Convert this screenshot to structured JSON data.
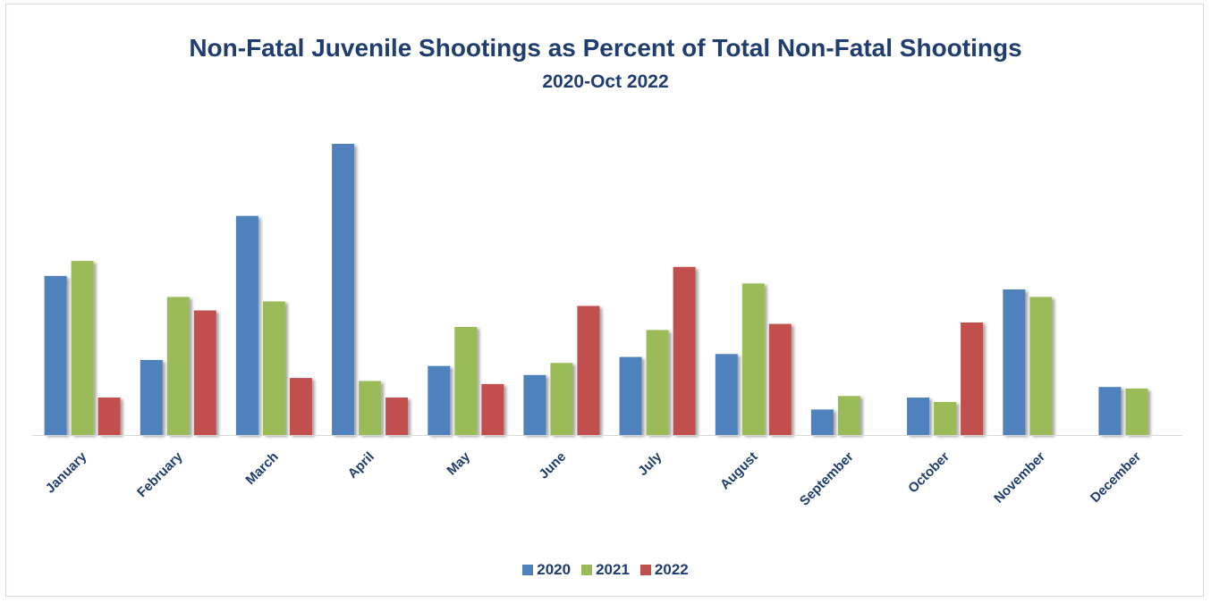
{
  "chart_data": {
    "type": "bar",
    "title": "Non-Fatal Juvenile Shootings as Percent of Total Non-Fatal Shootings",
    "subtitle": "2020-Oct 2022",
    "xlabel": "",
    "ylabel": "",
    "categories": [
      "January",
      "February",
      "March",
      "April",
      "May",
      "June",
      "July",
      "August",
      "September",
      "October",
      "November",
      "December"
    ],
    "series": [
      {
        "name": "2020",
        "color": "#4f81bd",
        "values": [
          53,
          25,
          73,
          97,
          23,
          20,
          26,
          27,
          8.5,
          12.5,
          48.5,
          16
        ]
      },
      {
        "name": "2021",
        "color": "#9bbb59",
        "values": [
          58,
          46,
          44.5,
          18,
          36,
          24,
          35,
          50.5,
          13,
          11,
          46,
          15.5
        ]
      },
      {
        "name": "2022",
        "color": "#c0504d",
        "values": [
          12.5,
          41.5,
          19,
          12.5,
          17,
          43,
          56,
          37,
          null,
          37.5,
          null,
          null
        ]
      }
    ],
    "ylim": [
      0,
      100
    ],
    "grid": false,
    "legend": "bottom"
  }
}
